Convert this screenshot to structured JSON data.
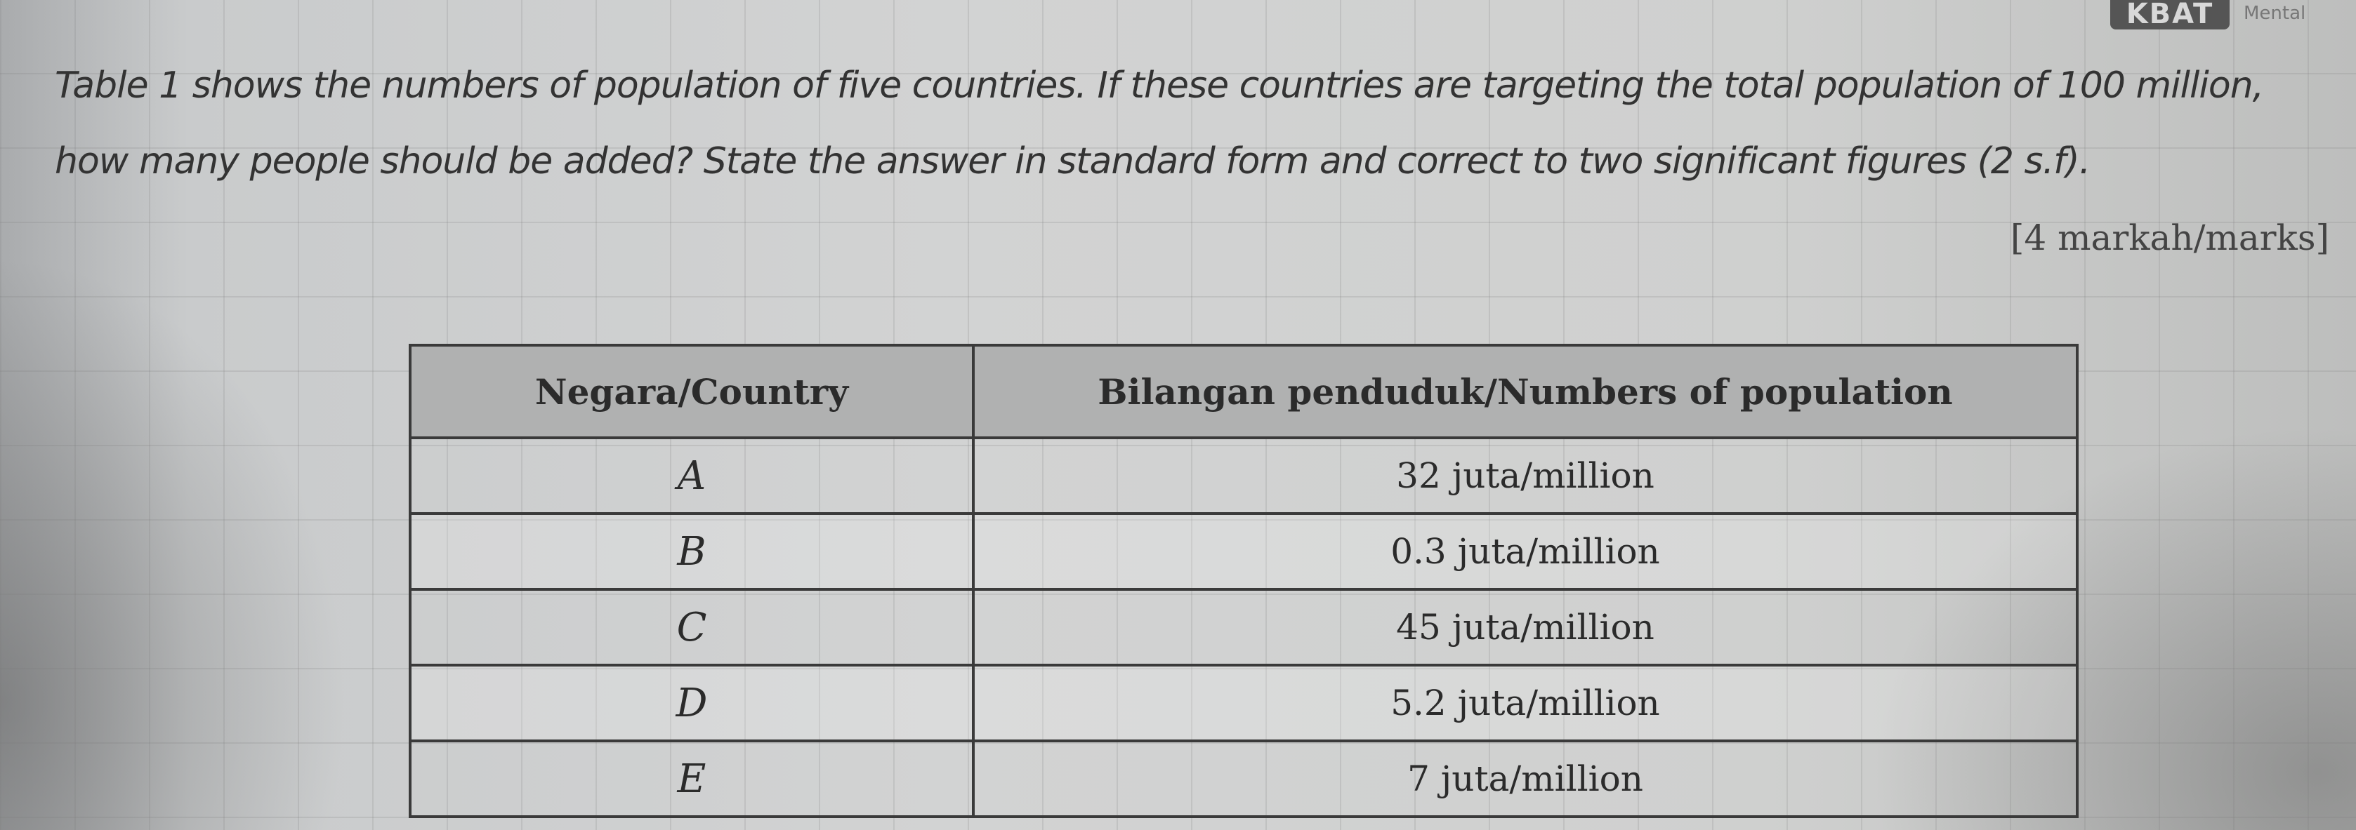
{
  "header": {
    "badge": "KBAT",
    "badge_side": "Mental"
  },
  "question": {
    "line1": "Table 1 shows the numbers of population of five countries. If these countries are targeting the total population of 100 million,",
    "line2": "how many people should be added? State the answer in standard form and correct to two significant figures (2 s.f).",
    "marks": "[4 markah/marks]"
  },
  "table": {
    "headers": [
      "Negara/Country",
      "Bilangan penduduk/Numbers of population"
    ],
    "rows": [
      {
        "country": "A",
        "population": "32 juta/million"
      },
      {
        "country": "B",
        "population": "0.3 juta/million"
      },
      {
        "country": "C",
        "population": "45 juta/million"
      },
      {
        "country": "D",
        "population": "5.2 juta/million"
      },
      {
        "country": "E",
        "population": "7 juta/million"
      }
    ]
  }
}
